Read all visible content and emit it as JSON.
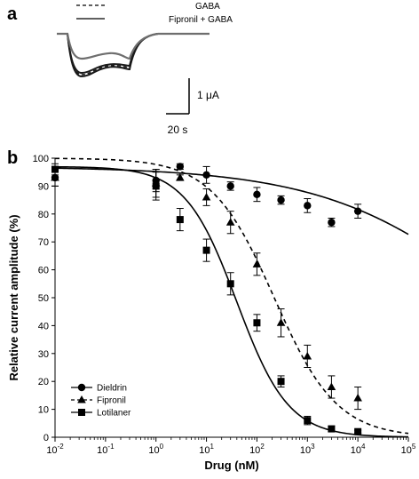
{
  "panel_a": {
    "label": "a",
    "legend": [
      {
        "name": "GABA",
        "style": "dashed"
      },
      {
        "name": "Fipronil + GABA",
        "style": "solid"
      }
    ],
    "scale_y_label": "1 μA",
    "scale_x_label": "20 s",
    "colors": {
      "trace_black": "#1a1a1a",
      "trace_gray": "#6e6e6e"
    }
  },
  "panel_b": {
    "label": "b",
    "tick_superscripts": {
      "10^-2": "-2",
      "10^-1": "-1",
      "10^0": "0",
      "10^1": "1",
      "10^2": "2",
      "10^3": "3",
      "10^4": "4",
      "10^5": "5"
    }
  },
  "chart_data": {
    "type": "scatter",
    "xscale": "log",
    "xlabel": "Drug (nM)",
    "ylabel": "Relative current amplitude (%)",
    "xlim": [
      0.01,
      100000
    ],
    "ylim": [
      0,
      100
    ],
    "xticks": [
      "10^-2",
      "10^-1",
      "10^0",
      "10^1",
      "10^2",
      "10^3",
      "10^4",
      "10^5"
    ],
    "yticks": [
      0,
      10,
      20,
      30,
      40,
      50,
      60,
      70,
      80,
      90,
      100
    ],
    "legend_position": "bottom-left",
    "grid": false,
    "series": [
      {
        "name": "Dieldrin",
        "marker": "circle",
        "fit_line": "solid",
        "x": [
          0.01,
          1,
          3,
          10,
          30,
          100,
          300,
          1000,
          3000,
          10000
        ],
        "y": [
          93,
          92,
          97,
          94,
          90,
          87,
          85,
          83,
          77,
          81
        ],
        "err": [
          3,
          4,
          1,
          3,
          1.5,
          2.5,
          1.5,
          2.5,
          1.5,
          2.5
        ],
        "fit": {
          "top": 97,
          "bottom": 0,
          "ic50": 8000000,
          "hill": 0.25
        }
      },
      {
        "name": "Fipronil",
        "marker": "triangle",
        "fit_line": "dashed",
        "x": [
          0.01,
          1,
          3,
          10,
          30,
          100,
          300,
          1000,
          3000,
          10000
        ],
        "y": [
          93,
          91,
          93,
          86,
          77,
          62,
          41,
          29,
          18,
          14
        ],
        "err": [
          3,
          5,
          1,
          3,
          4,
          4,
          5,
          4,
          4,
          4
        ],
        "fit": {
          "top": 100,
          "bottom": 0,
          "ic50": 220,
          "hill": 0.7
        }
      },
      {
        "name": "Lotilaner",
        "marker": "square",
        "fit_line": "solid",
        "x": [
          0.01,
          1,
          3,
          10,
          30,
          100,
          300,
          1000,
          3000,
          10000
        ],
        "y": [
          96,
          90,
          78,
          67,
          55,
          41,
          20,
          6,
          3,
          2
        ],
        "err": [
          2,
          5,
          4,
          4,
          4,
          3,
          2,
          1.5,
          1,
          0.5
        ],
        "fit": {
          "top": 97,
          "bottom": 0,
          "ic50": 40,
          "hill": 0.85
        }
      }
    ]
  }
}
